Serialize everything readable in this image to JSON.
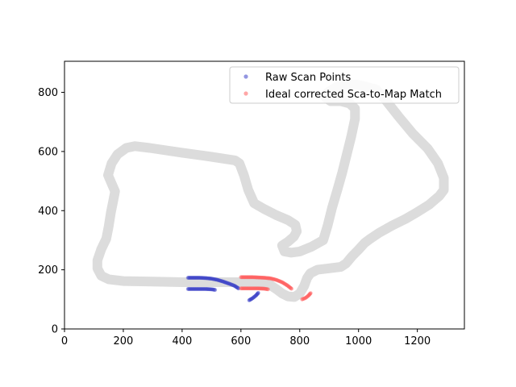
{
  "chart_data": {
    "type": "scatter",
    "title": "",
    "xlabel": "",
    "ylabel": "",
    "xlim": [
      0,
      1360
    ],
    "ylim": [
      0,
      905
    ],
    "xticks": [
      0,
      200,
      400,
      600,
      800,
      1000,
      1200
    ],
    "yticks": [
      0,
      200,
      400,
      600,
      800
    ],
    "grid": false,
    "legend_position": "top-right",
    "track": {
      "color": "#dcdcdc",
      "path": [
        [
          640,
          158
        ],
        [
          600,
          158
        ],
        [
          500,
          158
        ],
        [
          400,
          158
        ],
        [
          300,
          160
        ],
        [
          200,
          162
        ],
        [
          150,
          168
        ],
        [
          125,
          180
        ],
        [
          112,
          205
        ],
        [
          112,
          232
        ],
        [
          125,
          270
        ],
        [
          142,
          305
        ],
        [
          150,
          345
        ],
        [
          158,
          395
        ],
        [
          165,
          430
        ],
        [
          172,
          465
        ],
        [
          160,
          492
        ],
        [
          148,
          520
        ],
        [
          160,
          560
        ],
        [
          180,
          590
        ],
        [
          210,
          612
        ],
        [
          240,
          618
        ],
        [
          290,
          612
        ],
        [
          400,
          596
        ],
        [
          500,
          582
        ],
        [
          580,
          570
        ],
        [
          595,
          560
        ],
        [
          610,
          520
        ],
        [
          625,
          470
        ],
        [
          645,
          425
        ],
        [
          680,
          405
        ],
        [
          720,
          385
        ],
        [
          760,
          368
        ],
        [
          785,
          352
        ],
        [
          790,
          330
        ],
        [
          780,
          312
        ],
        [
          760,
          295
        ],
        [
          740,
          282
        ],
        [
          748,
          262
        ],
        [
          770,
          258
        ],
        [
          800,
          262
        ],
        [
          840,
          278
        ],
        [
          880,
          300
        ],
        [
          895,
          350
        ],
        [
          910,
          410
        ],
        [
          928,
          470
        ],
        [
          945,
          530
        ],
        [
          960,
          590
        ],
        [
          975,
          650
        ],
        [
          988,
          710
        ],
        [
          988,
          745
        ],
        [
          970,
          762
        ],
        [
          940,
          770
        ],
        [
          905,
          770
        ],
        [
          888,
          782
        ],
        [
          895,
          800
        ],
        [
          925,
          818
        ],
        [
          960,
          826
        ],
        [
          995,
          826
        ],
        [
          1030,
          818
        ],
        [
          1060,
          810
        ],
        [
          1095,
          770
        ],
        [
          1135,
          720
        ],
        [
          1185,
          660
        ],
        [
          1235,
          610
        ],
        [
          1270,
          560
        ],
        [
          1290,
          510
        ],
        [
          1290,
          470
        ],
        [
          1275,
          450
        ],
        [
          1240,
          420
        ],
        [
          1200,
          395
        ],
        [
          1160,
          372
        ],
        [
          1115,
          350
        ],
        [
          1070,
          325
        ],
        [
          1040,
          305
        ],
        [
          1020,
          290
        ],
        [
          1000,
          268
        ],
        [
          978,
          246
        ],
        [
          958,
          222
        ],
        [
          940,
          210
        ],
        [
          900,
          205
        ],
        [
          860,
          200
        ],
        [
          836,
          188
        ],
        [
          825,
          172
        ],
        [
          815,
          145
        ],
        [
          800,
          120
        ],
        [
          782,
          108
        ],
        [
          760,
          110
        ],
        [
          740,
          120
        ],
        [
          720,
          135
        ],
        [
          700,
          148
        ],
        [
          680,
          155
        ],
        [
          640,
          158
        ]
      ]
    },
    "series": [
      {
        "name": "Raw Scan Points",
        "color": "#3a3fc8",
        "segments": [
          [
            [
              420,
              173
            ],
            [
              440,
              173
            ],
            [
              460,
              173
            ],
            [
              480,
              172
            ],
            [
              500,
              170
            ],
            [
              520,
              166
            ],
            [
              540,
              160
            ],
            [
              560,
              153
            ],
            [
              578,
              146
            ],
            [
              592,
              137
            ]
          ],
          [
            [
              420,
              135
            ],
            [
              440,
              135
            ],
            [
              460,
              135
            ],
            [
              480,
              135
            ],
            [
              500,
              134
            ],
            [
              512,
              132
            ]
          ],
          [
            [
              628,
              97
            ],
            [
              640,
              104
            ],
            [
              652,
              114
            ],
            [
              659,
              122
            ]
          ]
        ]
      },
      {
        "name": "Ideal corrected Sca-to-Map Match",
        "color": "#ff5c5c",
        "segments": [
          [
            [
              600,
              175
            ],
            [
              620,
              175
            ],
            [
              640,
              175
            ],
            [
              660,
              174
            ],
            [
              680,
              173
            ],
            [
              700,
              171
            ],
            [
              720,
              166
            ],
            [
              740,
              158
            ],
            [
              758,
              147
            ],
            [
              772,
              136
            ]
          ],
          [
            [
              600,
              137
            ],
            [
              620,
              137
            ],
            [
              640,
              137
            ],
            [
              660,
              137
            ],
            [
              680,
              136
            ],
            [
              692,
              134
            ]
          ],
          [
            [
              808,
              100
            ],
            [
              820,
              105
            ],
            [
              830,
              113
            ],
            [
              837,
              121
            ]
          ]
        ]
      }
    ]
  }
}
